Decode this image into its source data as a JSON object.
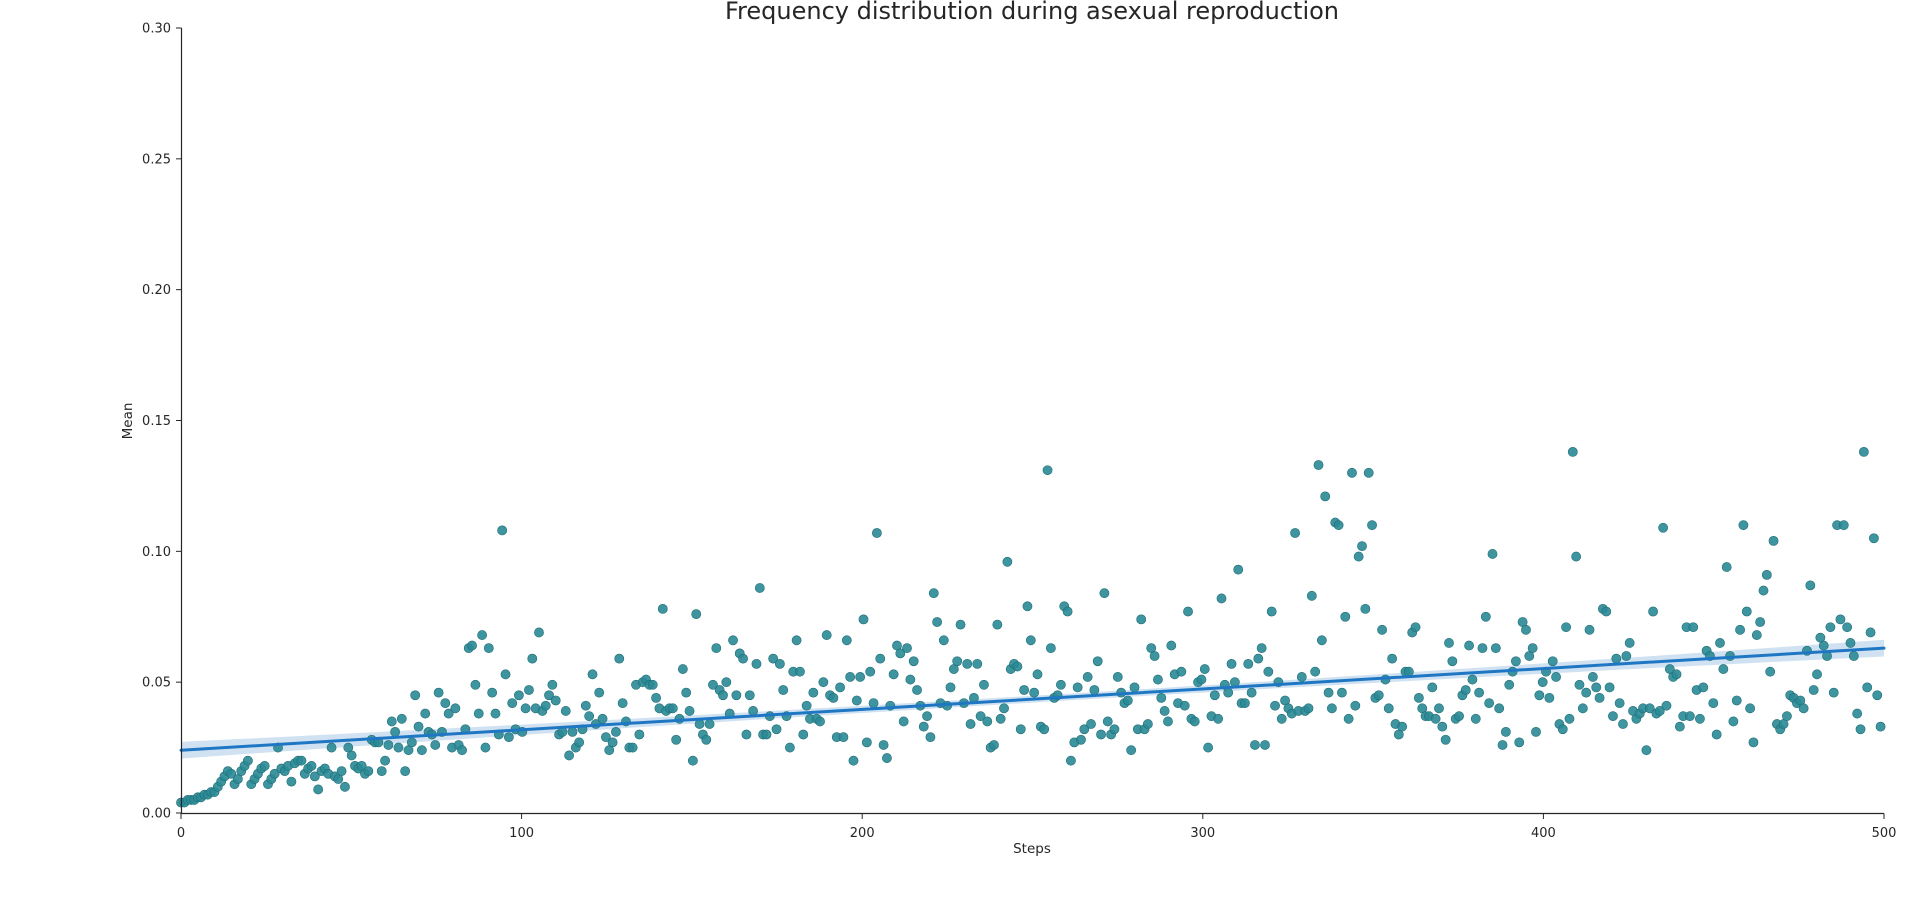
{
  "chart_data": {
    "type": "scatter",
    "title": "Frequency distribution during asexual reproduction",
    "xlabel": "Steps",
    "ylabel": "Mean",
    "xlim": [
      0,
      500
    ],
    "ylim": [
      0,
      0.3
    ],
    "x_ticks": [
      0,
      100,
      200,
      300,
      400,
      500
    ],
    "y_ticks": [
      0.0,
      0.05,
      0.1,
      0.15,
      0.2,
      0.25,
      0.3
    ],
    "x_tick_labels": [
      "0",
      "100",
      "200",
      "300",
      "400",
      "500"
    ],
    "y_tick_labels": [
      "0.00",
      "0.05",
      "0.10",
      "0.15",
      "0.20",
      "0.25",
      "0.30"
    ],
    "grid": false,
    "colors": {
      "points": "#2a8a95",
      "point_edge": "#1f6e78",
      "fit_line": "#1f77c4",
      "ci_band": "#a9cbe8",
      "axis": "#262626"
    },
    "regression": {
      "type": "linear",
      "x_range": [
        0,
        500
      ],
      "start": 0.024,
      "end": 0.063,
      "ci_halfwidth_at_ends": 0.0032,
      "ci_halfwidth_at_mid": 0.0013
    },
    "point_series": {
      "x_start": 0,
      "x_end": 499,
      "y": [
        0.004,
        0.004,
        0.005,
        0.005,
        0.005,
        0.006,
        0.006,
        0.007,
        0.007,
        0.008,
        0.008,
        0.01,
        0.012,
        0.014,
        0.016,
        0.015,
        0.011,
        0.013,
        0.016,
        0.018,
        0.02,
        0.011,
        0.013,
        0.015,
        0.017,
        0.018,
        0.011,
        0.013,
        0.015,
        0.025,
        0.017,
        0.016,
        0.018,
        0.012,
        0.019,
        0.02,
        0.02,
        0.015,
        0.017,
        0.018,
        0.014,
        0.009,
        0.016,
        0.017,
        0.015,
        0.025,
        0.014,
        0.013,
        0.016,
        0.01,
        0.025,
        0.022,
        0.018,
        0.017,
        0.018,
        0.015,
        0.016,
        0.028,
        0.027,
        0.027,
        0.016,
        0.02,
        0.026,
        0.035,
        0.031,
        0.025,
        0.036,
        0.016,
        0.024,
        0.027,
        0.045,
        0.033,
        0.024,
        0.038,
        0.031,
        0.03,
        0.026,
        0.046,
        0.031,
        0.042,
        0.038,
        0.025,
        0.04,
        0.026,
        0.024,
        0.032,
        0.063,
        0.064,
        0.049,
        0.038,
        0.068,
        0.025,
        0.063,
        0.046,
        0.038,
        0.03,
        0.108,
        0.053,
        0.029,
        0.042,
        0.032,
        0.045,
        0.031,
        0.04,
        0.047,
        0.059,
        0.04,
        0.069,
        0.039,
        0.041,
        0.045,
        0.049,
        0.043,
        0.03,
        0.031,
        0.039,
        0.022,
        0.031,
        0.025,
        0.027,
        0.032,
        0.041,
        0.037,
        0.053,
        0.034,
        0.046,
        0.036,
        0.029,
        0.024,
        0.027,
        0.031,
        0.059,
        0.042,
        0.035,
        0.025,
        0.025,
        0.049,
        0.03,
        0.05,
        0.051,
        0.049,
        0.049,
        0.044,
        0.04,
        0.078,
        0.039,
        0.04,
        0.04,
        0.028,
        0.036,
        0.055,
        0.046,
        0.039,
        0.02,
        0.076,
        0.034,
        0.03,
        0.028,
        0.034,
        0.049,
        0.063,
        0.047,
        0.045,
        0.05,
        0.038,
        0.066,
        0.045,
        0.061,
        0.059,
        0.03,
        0.045,
        0.039,
        0.057,
        0.086,
        0.03,
        0.03,
        0.037,
        0.059,
        0.032,
        0.057,
        0.047,
        0.037,
        0.025,
        0.054,
        0.066,
        0.054,
        0.03,
        0.041,
        0.036,
        0.046,
        0.036,
        0.035,
        0.05,
        0.068,
        0.045,
        0.044,
        0.029,
        0.048,
        0.029,
        0.066,
        0.052,
        0.02,
        0.043,
        0.052,
        0.074,
        0.027,
        0.054,
        0.042,
        0.107,
        0.059,
        0.026,
        0.021,
        0.041,
        0.053,
        0.064,
        0.061,
        0.035,
        0.063,
        0.051,
        0.058,
        0.047,
        0.041,
        0.033,
        0.037,
        0.029,
        0.084,
        0.073,
        0.042,
        0.066,
        0.041,
        0.048,
        0.055,
        0.058,
        0.072,
        0.042,
        0.057,
        0.034,
        0.044,
        0.057,
        0.037,
        0.049,
        0.035,
        0.025,
        0.026,
        0.072,
        0.036,
        0.04,
        0.096,
        0.055,
        0.057,
        0.056,
        0.032,
        0.047,
        0.079,
        0.066,
        0.046,
        0.053,
        0.033,
        0.032,
        0.131,
        0.063,
        0.044,
        0.045,
        0.049,
        0.079,
        0.077,
        0.02,
        0.027,
        0.048,
        0.028,
        0.032,
        0.052,
        0.034,
        0.047,
        0.058,
        0.03,
        0.084,
        0.035,
        0.03,
        0.032,
        0.052,
        0.046,
        0.042,
        0.043,
        0.024,
        0.048,
        0.032,
        0.074,
        0.032,
        0.034,
        0.063,
        0.06,
        0.051,
        0.044,
        0.039,
        0.035,
        0.064,
        0.053,
        0.042,
        0.054,
        0.041,
        0.077,
        0.036,
        0.035,
        0.05,
        0.051,
        0.055,
        0.025,
        0.037,
        0.045,
        0.036,
        0.082,
        0.049,
        0.046,
        0.057,
        0.05,
        0.093,
        0.042,
        0.042,
        0.057,
        0.046,
        0.026,
        0.059,
        0.063,
        0.026,
        0.054,
        0.077,
        0.041,
        0.05,
        0.036,
        0.043,
        0.04,
        0.038,
        0.107,
        0.039,
        0.052,
        0.039,
        0.04,
        0.083,
        0.054,
        0.133,
        0.066,
        0.121,
        0.046,
        0.04,
        0.111,
        0.11,
        0.046,
        0.075,
        0.036,
        0.13,
        0.041,
        0.098,
        0.102,
        0.078,
        0.13,
        0.11,
        0.044,
        0.045,
        0.07,
        0.051,
        0.04,
        0.059,
        0.034,
        0.03,
        0.033,
        0.054,
        0.054,
        0.069,
        0.071,
        0.044,
        0.04,
        0.037,
        0.037,
        0.048,
        0.036,
        0.04,
        0.033,
        0.028,
        0.065,
        0.058,
        0.036,
        0.037,
        0.045,
        0.047,
        0.064,
        0.051,
        0.036,
        0.046,
        0.063,
        0.075,
        0.042,
        0.099,
        0.063,
        0.04,
        0.026,
        0.031,
        0.049,
        0.054,
        0.058,
        0.027,
        0.073,
        0.07,
        0.06,
        0.063,
        0.031,
        0.045,
        0.05,
        0.054,
        0.044,
        0.058,
        0.052,
        0.034,
        0.032,
        0.071,
        0.036,
        0.138,
        0.098,
        0.049,
        0.04,
        0.046,
        0.07,
        0.052,
        0.048,
        0.044,
        0.078,
        0.077,
        0.048,
        0.037,
        0.059,
        0.042,
        0.034,
        0.06,
        0.065,
        0.039,
        0.036,
        0.038,
        0.04,
        0.024,
        0.04,
        0.077,
        0.038,
        0.039,
        0.109,
        0.041,
        0.055,
        0.052,
        0.053,
        0.033,
        0.037,
        0.071,
        0.037,
        0.071,
        0.047,
        0.036,
        0.048,
        0.062,
        0.06,
        0.042,
        0.03,
        0.065,
        0.055,
        0.094,
        0.06,
        0.035,
        0.043,
        0.07,
        0.11,
        0.077,
        0.04,
        0.027,
        0.068,
        0.073,
        0.085,
        0.091,
        0.054,
        0.104,
        0.034,
        0.032,
        0.034,
        0.037,
        0.045,
        0.044,
        0.042,
        0.043,
        0.04,
        0.062,
        0.087,
        0.047,
        0.053,
        0.067,
        0.064,
        0.06,
        0.071,
        0.046,
        0.11,
        0.074,
        0.11,
        0.071,
        0.065,
        0.06,
        0.038,
        0.032,
        0.138,
        0.048,
        0.069,
        0.105,
        0.045,
        0.033
      ]
    }
  }
}
